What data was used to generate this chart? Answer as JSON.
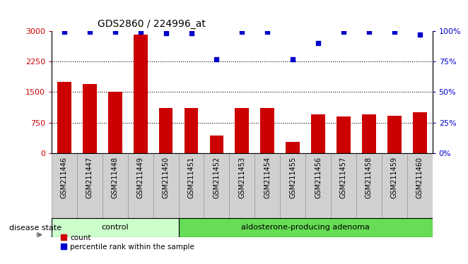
{
  "title": "GDS2860 / 224996_at",
  "categories": [
    "GSM211446",
    "GSM211447",
    "GSM211448",
    "GSM211449",
    "GSM211450",
    "GSM211451",
    "GSM211452",
    "GSM211453",
    "GSM211454",
    "GSM211455",
    "GSM211456",
    "GSM211457",
    "GSM211458",
    "GSM211459",
    "GSM211460"
  ],
  "counts": [
    1750,
    1700,
    1500,
    2900,
    1100,
    1100,
    430,
    1100,
    1100,
    270,
    950,
    900,
    950,
    920,
    1000
  ],
  "percentiles": [
    99,
    99,
    99,
    99,
    98,
    98,
    77,
    99,
    99,
    77,
    90,
    99,
    99,
    99,
    97
  ],
  "control_count": 5,
  "adenoma_count": 10,
  "group_labels": [
    "control",
    "aldosterone-producing adenoma"
  ],
  "control_color": "#ccffcc",
  "adenoma_color": "#66dd55",
  "bar_color": "#cc0000",
  "dot_color": "#0000cc",
  "ylim_left": [
    0,
    3000
  ],
  "ylim_right": [
    0,
    100
  ],
  "yticks_left": [
    0,
    750,
    1500,
    2250,
    3000
  ],
  "yticks_right": [
    0,
    25,
    50,
    75,
    100
  ],
  "grid_values": [
    750,
    1500,
    2250
  ],
  "tick_bg_color": "#d0d0d0",
  "legend_count_label": "count",
  "legend_pct_label": "percentile rank within the sample",
  "disease_state_label": "disease state"
}
